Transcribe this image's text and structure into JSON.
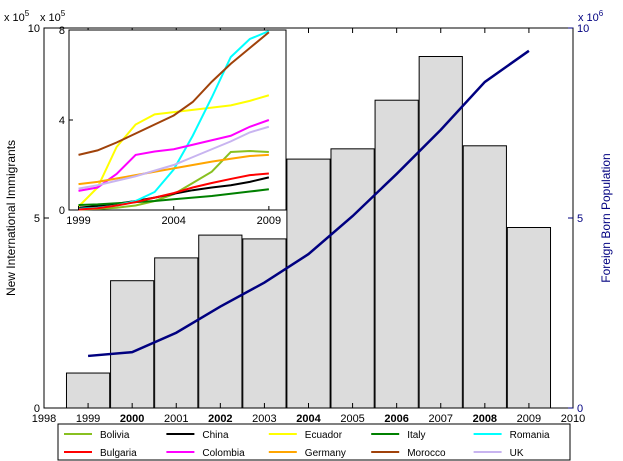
{
  "chart_data": [
    {
      "type": "bar",
      "role": "main",
      "x": [
        1999,
        2000,
        2001,
        2002,
        2003,
        2004,
        2005,
        2006,
        2007,
        2008,
        2009
      ],
      "bar_values": [
        92000,
        335000,
        395000,
        455000,
        445000,
        655000,
        682000,
        810000,
        925000,
        690000,
        475000
      ],
      "bar_scale_label": "x 10^5",
      "bar_color": "#dcdcdc",
      "line_series": {
        "values": [
          1370000,
          1470000,
          1980000,
          2670000,
          3300000,
          4050000,
          5050000,
          6160000,
          7320000,
          8580000,
          9400000
        ],
        "color": "#000080"
      },
      "xlim": [
        1998,
        2010
      ],
      "xticks": [
        1998,
        1999,
        2000,
        2001,
        2002,
        2003,
        2004,
        2005,
        2006,
        2007,
        2008,
        2009,
        2010
      ],
      "x_bold_ticks": [
        2000,
        2002,
        2004,
        2006,
        2008
      ],
      "ylim_left": [
        0,
        1000000
      ],
      "ylim_right": [
        0,
        10000000
      ],
      "yticks_left_labels": [
        "0",
        "5",
        "10"
      ],
      "yticks_right_labels": [
        "0",
        "5",
        "10"
      ],
      "ylabel_left": "New International Immigrants",
      "ylabel_right": "Foreign Born Population",
      "left_multiplier": "x 10",
      "left_exponent": "5",
      "right_multiplier": "x 10",
      "right_exponent": "6"
    },
    {
      "type": "line",
      "role": "inset",
      "xlim": [
        1998.5,
        2009.9
      ],
      "ylim": [
        0,
        800000
      ],
      "xticks_labels": [
        "1999",
        "2004",
        "2009"
      ],
      "yticks_labels": [
        "0",
        "4",
        "8"
      ],
      "multiplier": "x 10",
      "exponent": "5",
      "series": [
        {
          "name": "Bolivia",
          "color": "#88c020",
          "x": [
            1999,
            2000,
            2001,
            2002,
            2003,
            2004,
            2005,
            2006,
            2007,
            2008,
            2009
          ],
          "y": [
            2000,
            5000,
            10000,
            20000,
            40000,
            70000,
            120000,
            170000,
            258000,
            262000,
            258000
          ]
        },
        {
          "name": "China",
          "color": "#000000",
          "x": [
            1999,
            2000,
            2001,
            2002,
            2003,
            2004,
            2005,
            2006,
            2007,
            2008,
            2009
          ],
          "y": [
            10000,
            18000,
            28000,
            40000,
            55000,
            72000,
            88000,
            100000,
            110000,
            125000,
            145000
          ]
        },
        {
          "name": "Ecuador",
          "color": "#ffff00",
          "x": [
            1999,
            2000,
            2001,
            2002,
            2003,
            2004,
            2005,
            2006,
            2007,
            2008,
            2009
          ],
          "y": [
            15000,
            100000,
            280000,
            380000,
            425000,
            435000,
            445000,
            455000,
            465000,
            485000,
            510000
          ]
        },
        {
          "name": "Italy",
          "color": "#008000",
          "x": [
            1999,
            2000,
            2001,
            2002,
            2003,
            2004,
            2005,
            2006,
            2007,
            2008,
            2009
          ],
          "y": [
            22000,
            25000,
            30000,
            35000,
            40000,
            48000,
            55000,
            62000,
            72000,
            82000,
            92000
          ]
        },
        {
          "name": "Romania",
          "color": "#00ffff",
          "x": [
            1999,
            2000,
            2001,
            2002,
            2003,
            2004,
            2005,
            2006,
            2007,
            2008,
            2009
          ],
          "y": [
            5000,
            10000,
            20000,
            40000,
            80000,
            180000,
            330000,
            500000,
            680000,
            760000,
            795000
          ]
        },
        {
          "name": "Bulgaria",
          "color": "#ff0000",
          "x": [
            1999,
            2000,
            2001,
            2002,
            2003,
            2004,
            2005,
            2006,
            2007,
            2008,
            2009
          ],
          "y": [
            2000,
            8000,
            20000,
            35000,
            55000,
            75000,
            100000,
            120000,
            138000,
            155000,
            162000
          ]
        },
        {
          "name": "Colombia",
          "color": "#ff00ff",
          "x": [
            1999,
            2000,
            2001,
            2002,
            2003,
            2004,
            2005,
            2006,
            2007,
            2008,
            2009
          ],
          "y": [
            85000,
            100000,
            160000,
            245000,
            260000,
            270000,
            290000,
            310000,
            330000,
            370000,
            400000
          ]
        },
        {
          "name": "Germany",
          "color": "#ffa500",
          "x": [
            1999,
            2000,
            2001,
            2002,
            2003,
            2004,
            2005,
            2006,
            2007,
            2008,
            2009
          ],
          "y": [
            115000,
            125000,
            140000,
            155000,
            170000,
            185000,
            200000,
            215000,
            228000,
            240000,
            245000
          ]
        },
        {
          "name": "Morocco",
          "color": "#a0420a",
          "x": [
            1999,
            2000,
            2001,
            2002,
            2003,
            2004,
            2005,
            2006,
            2007,
            2008,
            2009
          ],
          "y": [
            245000,
            265000,
            300000,
            340000,
            380000,
            420000,
            480000,
            570000,
            650000,
            720000,
            790000
          ]
        },
        {
          "name": "UK",
          "color": "#c8b4f0",
          "x": [
            1999,
            2000,
            2001,
            2002,
            2003,
            2004,
            2005,
            2006,
            2007,
            2008,
            2009
          ],
          "y": [
            95000,
            110000,
            130000,
            150000,
            175000,
            200000,
            235000,
            270000,
            305000,
            345000,
            370000
          ]
        }
      ]
    }
  ],
  "legend": [
    {
      "name": "Bolivia",
      "color": "#88c020"
    },
    {
      "name": "China",
      "color": "#000000"
    },
    {
      "name": "Ecuador",
      "color": "#ffff00"
    },
    {
      "name": "Italy",
      "color": "#008000"
    },
    {
      "name": "Romania",
      "color": "#00ffff"
    },
    {
      "name": "Bulgaria",
      "color": "#ff0000"
    },
    {
      "name": "Colombia",
      "color": "#ff00ff"
    },
    {
      "name": "Germany",
      "color": "#ffa500"
    },
    {
      "name": "Morocco",
      "color": "#a0420a"
    },
    {
      "name": "UK",
      "color": "#c8b4f0"
    }
  ]
}
